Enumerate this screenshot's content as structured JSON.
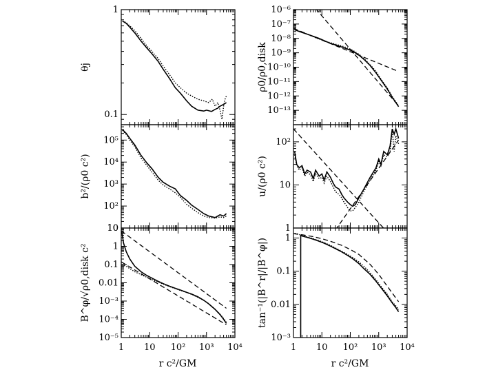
{
  "chart_data": {
    "type": "line",
    "figure": "six-panel log-log radial profiles",
    "x_scale": "log",
    "xlim": [
      1,
      10000
    ],
    "xlabel": "r c²/GM",
    "x_ticklabels": [
      "1",
      "10",
      "10²",
      "10³",
      "10⁴"
    ],
    "panels": [
      {
        "id": "theta_j",
        "column": "left",
        "row": 1,
        "ylabel": "θj",
        "y_scale": "log",
        "ylim": [
          0.08,
          1.0
        ],
        "yticks": [
          {
            "v": 0.1,
            "label": "0.1"
          },
          {
            "v": 1,
            "label": "1"
          }
        ],
        "series": [
          {
            "name": "solid",
            "style": "solid",
            "x": [
              1.1,
              1.5,
              2,
              3,
              5,
              8,
              12,
              20,
              30,
              50,
              80,
              120,
              200,
              300,
              500,
              800,
              1000,
              1500,
              2000,
              2500,
              3000,
              4000,
              5000
            ],
            "y": [
              0.78,
              0.74,
              0.68,
              0.6,
              0.5,
              0.43,
              0.38,
              0.32,
              0.27,
              0.22,
              0.18,
              0.16,
              0.135,
              0.12,
              0.11,
              0.108,
              0.11,
              0.107,
              0.112,
              0.115,
              0.12,
              0.125,
              0.13
            ]
          },
          {
            "name": "dotted",
            "style": "dotted",
            "x": [
              1.1,
              1.5,
              2,
              3,
              5,
              8,
              12,
              20,
              30,
              50,
              80,
              120,
              200,
              300,
              500,
              800,
              1200,
              1600,
              2000,
              2500,
              3000,
              3500,
              4000,
              4500,
              5000
            ],
            "y": [
              0.78,
              0.75,
              0.7,
              0.63,
              0.53,
              0.45,
              0.4,
              0.34,
              0.29,
              0.24,
              0.2,
              0.18,
              0.16,
              0.15,
              0.14,
              0.135,
              0.13,
              0.14,
              0.12,
              0.13,
              0.11,
              0.09,
              0.12,
              0.14,
              0.15
            ]
          }
        ]
      },
      {
        "id": "b2",
        "column": "left",
        "row": 2,
        "ylabel": "b²/(ρ0 c²)",
        "y_scale": "log",
        "ylim": [
          10,
          500000
        ],
        "yticks": [
          {
            "v": 10,
            "label": "10"
          },
          {
            "v": 100,
            "label": "10²"
          },
          {
            "v": 1000,
            "label": "10³"
          },
          {
            "v": 10000,
            "label": "10⁴"
          },
          {
            "v": 100000,
            "label": "10⁵"
          }
        ],
        "series": [
          {
            "name": "solid",
            "style": "solid",
            "x": [
              1.1,
              1.5,
              2,
              3,
              5,
              8,
              12,
              20,
              30,
              50,
              80,
              120,
              200,
              300,
              500,
              800,
              1200,
              2000,
              3000,
              4000,
              5000
            ],
            "y": [
              300000,
              200000,
              120000,
              60000,
              20000,
              9000,
              5000,
              2000,
              1200,
              800,
              600,
              300,
              180,
              110,
              70,
              45,
              35,
              30,
              40,
              35,
              45
            ]
          },
          {
            "name": "dotted",
            "style": "dotted",
            "x": [
              1.1,
              1.5,
              2,
              3,
              5,
              8,
              12,
              20,
              30,
              50,
              80,
              120,
              200,
              300,
              500,
              800,
              1200,
              2000,
              3000,
              4000,
              5000
            ],
            "y": [
              280000,
              180000,
              100000,
              50000,
              15000,
              7000,
              3500,
              1500,
              900,
              600,
              400,
              250,
              120,
              80,
              50,
              35,
              30,
              28,
              32,
              30,
              35
            ]
          }
        ]
      },
      {
        "id": "Bphi",
        "column": "left",
        "row": 3,
        "ylabel": "B^φ/√ρ0,disk c²",
        "y_scale": "log",
        "ylim": [
          1e-05,
          10
        ],
        "yticks": [
          {
            "v": 1e-05,
            "label": "10⁻⁵"
          },
          {
            "v": 0.0001,
            "label": "10⁻⁴"
          },
          {
            "v": 0.001,
            "label": "10⁻³"
          },
          {
            "v": 0.01,
            "label": "0.01"
          },
          {
            "v": 0.1,
            "label": "0.1"
          },
          {
            "v": 1,
            "label": "1"
          },
          {
            "v": 10,
            "label": "10"
          }
        ],
        "series": [
          {
            "name": "solid",
            "style": "solid",
            "x": [
              1.05,
              1.2,
              1.5,
              2,
              3,
              5,
              8,
              12,
              20,
              30,
              50,
              80,
              120,
              200,
              300,
              500,
              800,
              1200,
              2000,
              3000,
              4000,
              5000
            ],
            "y": [
              6,
              1.5,
              0.5,
              0.2,
              0.08,
              0.04,
              0.025,
              0.018,
              0.012,
              0.009,
              0.0065,
              0.005,
              0.004,
              0.003,
              0.0024,
              0.0017,
              0.0011,
              0.0007,
              0.00035,
              0.00018,
              0.0001,
              6e-05
            ]
          },
          {
            "name": "dotted",
            "style": "dotted",
            "x": [
              1.05,
              1.2,
              1.5,
              2,
              3,
              5,
              8,
              12,
              20,
              30,
              50,
              80,
              120,
              200,
              300,
              500,
              800,
              1200,
              2000,
              3000,
              4000,
              5000
            ],
            "y": [
              0.1,
              0.09,
              0.08,
              0.06,
              0.04,
              0.028,
              0.02,
              0.015,
              0.011,
              0.0085,
              0.0062,
              0.0048,
              0.0038,
              0.003,
              0.0023,
              0.0016,
              0.0011,
              0.00072,
              0.00036,
              0.00019,
              0.00011,
              7e-05
            ]
          },
          {
            "name": "dashed fit",
            "style": "dashed",
            "x": [
              1,
              5000
            ],
            "y": [
              7,
              0.0004
            ]
          },
          {
            "name": "dashed fit 2",
            "style": "dashed",
            "x": [
              1,
              5000
            ],
            "y": [
              0.14,
              5e-05
            ]
          }
        ]
      },
      {
        "id": "rho0",
        "column": "right",
        "row": 1,
        "ylabel": "ρ0/ρ0,disk",
        "y_scale": "log",
        "ylim": [
          1e-14,
          1e-06
        ],
        "yticks": [
          {
            "v": 1e-13,
            "label": "10⁻¹³"
          },
          {
            "v": 1e-12,
            "label": "10⁻¹²"
          },
          {
            "v": 1e-11,
            "label": "10⁻¹¹"
          },
          {
            "v": 1e-10,
            "label": "10⁻¹⁰"
          },
          {
            "v": 1e-09,
            "label": "10⁻⁹"
          },
          {
            "v": 1e-08,
            "label": "10⁻⁸"
          },
          {
            "v": 1e-07,
            "label": "10⁻⁷"
          },
          {
            "v": 1e-06,
            "label": "10⁻⁶"
          }
        ],
        "series": [
          {
            "name": "solid",
            "style": "solid",
            "x": [
              1.1,
              1.5,
              2,
              3,
              5,
              8,
              12,
              20,
              30,
              50,
              80,
              120,
              200,
              300,
              500,
              800,
              1200,
              2000,
              3000,
              4000,
              5000
            ],
            "y": [
              4e-08,
              3.2e-08,
              2.6e-08,
              2e-08,
              1.4e-08,
              1e-08,
              7e-09,
              4.5e-09,
              3.5e-09,
              2.5e-09,
              1.8e-09,
              1.3e-09,
              7e-10,
              3.5e-10,
              1.3e-10,
              4e-11,
              1.3e-11,
              3e-12,
              8e-13,
              3.5e-13,
              1.8e-13
            ]
          },
          {
            "name": "dotted",
            "style": "dotted",
            "x": [
              1.1,
              1.5,
              2,
              3,
              5,
              8,
              12,
              20,
              30,
              50,
              80,
              120,
              200,
              300,
              500,
              800,
              1200,
              2000,
              3000,
              4000,
              5000
            ],
            "y": [
              4e-08,
              3.3e-08,
              2.7e-08,
              2e-08,
              1.3e-08,
              9e-09,
              6.5e-09,
              5e-09,
              4e-09,
              3e-09,
              2.2e-09,
              1.5e-09,
              8e-10,
              4e-10,
              1.5e-10,
              5e-11,
              1.5e-11,
              3.5e-12,
              9e-13,
              4e-13,
              2e-13
            ]
          },
          {
            "name": "dashed fit",
            "style": "dashed",
            "x": [
              1,
              5000
            ],
            "y": [
              5e-08,
              5e-11
            ]
          },
          {
            "name": "dashed fit 2",
            "style": "dashed",
            "x": [
              6,
              5000
            ],
            "y": [
              1.2e-06,
              2e-13
            ]
          }
        ]
      },
      {
        "id": "u",
        "column": "right",
        "row": 2,
        "ylabel": "u/(ρ0 c²)",
        "y_scale": "log",
        "ylim": [
          1,
          250
        ],
        "yticks": [
          {
            "v": 1,
            "label": "1"
          },
          {
            "v": 10,
            "label": "10"
          },
          {
            "v": 100,
            "label": "10²"
          }
        ],
        "series": [
          {
            "name": "solid",
            "style": "solid",
            "x": [
              1.1,
              1.3,
              1.6,
              2,
              2.5,
              3,
              4,
              5,
              6,
              8,
              10,
              12,
              15,
              20,
              25,
              30,
              40,
              50,
              60,
              80,
              100,
              120,
              150,
              200,
              300,
              500,
              800,
              1000,
              1200,
              1500,
              2000,
              2500,
              3000,
              3500,
              4000,
              5000
            ],
            "y": [
              60,
              30,
              25,
              28,
              18,
              22,
              20,
              14,
              22,
              16,
              18,
              13,
              20,
              15,
              11,
              9,
              8,
              6,
              5,
              4,
              3.5,
              3.2,
              3.5,
              5,
              8,
              15,
              25,
              40,
              30,
              60,
              50,
              80,
              200,
              150,
              200,
              120
            ]
          },
          {
            "name": "dotted",
            "style": "dotted",
            "x": [
              1.1,
              1.3,
              1.6,
              2,
              2.5,
              3,
              4,
              5,
              6,
              8,
              10,
              12,
              15,
              20,
              25,
              30,
              40,
              50,
              60,
              80,
              100,
              120,
              150,
              200,
              300,
              500,
              800,
              1000,
              1200,
              1500,
              2000,
              2500,
              3000,
              3500,
              4000,
              5000
            ],
            "y": [
              50,
              28,
              22,
              25,
              16,
              20,
              17,
              12,
              18,
              14,
              15,
              11,
              16,
              12,
              9,
              7,
              6,
              5,
              4,
              3,
              2.5,
              2.5,
              3,
              4,
              7,
              13,
              22,
              35,
              28,
              50,
              45,
              60,
              180,
              60,
              140,
              90
            ]
          },
          {
            "name": "dashed fit",
            "style": "dashed",
            "x": [
              1,
              2000
            ],
            "y": [
              200,
              0.8
            ]
          },
          {
            "name": "dashed fit 2",
            "style": "dashed",
            "x": [
              30,
              5000
            ],
            "y": [
              0.9,
              110
            ]
          }
        ]
      },
      {
        "id": "tan",
        "column": "right",
        "row": 3,
        "ylabel": "tan⁻¹(|B^r|/|B^φ|)",
        "y_scale": "log",
        "ylim": [
          0.001,
          2
        ],
        "yticks": [
          {
            "v": 0.001,
            "label": "10⁻³"
          },
          {
            "v": 0.01,
            "label": "0.01"
          },
          {
            "v": 0.1,
            "label": "0.1"
          },
          {
            "v": 1,
            "label": "1"
          }
        ],
        "series": [
          {
            "name": "solid",
            "style": "solid",
            "x": [
              1.8,
              1.8,
              2,
              3,
              5,
              8,
              12,
              20,
              30,
              50,
              80,
              120,
              200,
              300,
              500,
              800,
              1200,
              2000,
              3000,
              4000,
              5000
            ],
            "y": [
              0.001,
              1.2,
              1.15,
              1.05,
              0.92,
              0.8,
              0.7,
              0.57,
              0.48,
              0.38,
              0.3,
              0.24,
              0.17,
              0.12,
              0.08,
              0.05,
              0.032,
              0.018,
              0.011,
              0.008,
              0.006
            ]
          },
          {
            "name": "dotted",
            "style": "dotted",
            "x": [
              1.1,
              1.5,
              2,
              3,
              5,
              8,
              12,
              20,
              30,
              50,
              80,
              120,
              200,
              300,
              500,
              800,
              1200,
              2000,
              3000,
              4000,
              5000
            ],
            "y": [
              1.4,
              1.3,
              1.2,
              1.08,
              0.95,
              0.83,
              0.73,
              0.6,
              0.5,
              0.4,
              0.32,
              0.26,
              0.19,
              0.14,
              0.09,
              0.055,
              0.035,
              0.02,
              0.012,
              0.009,
              0.007
            ]
          },
          {
            "name": "dashed fit",
            "style": "dashed",
            "x": [
              1,
              2,
              5,
              10,
              20,
              50,
              100,
              200,
              500,
              1000,
              2000,
              5000
            ],
            "y": [
              1.35,
              1.25,
              1.1,
              0.95,
              0.8,
              0.6,
              0.45,
              0.32,
              0.16,
              0.08,
              0.035,
              0.012
            ]
          }
        ]
      }
    ]
  }
}
